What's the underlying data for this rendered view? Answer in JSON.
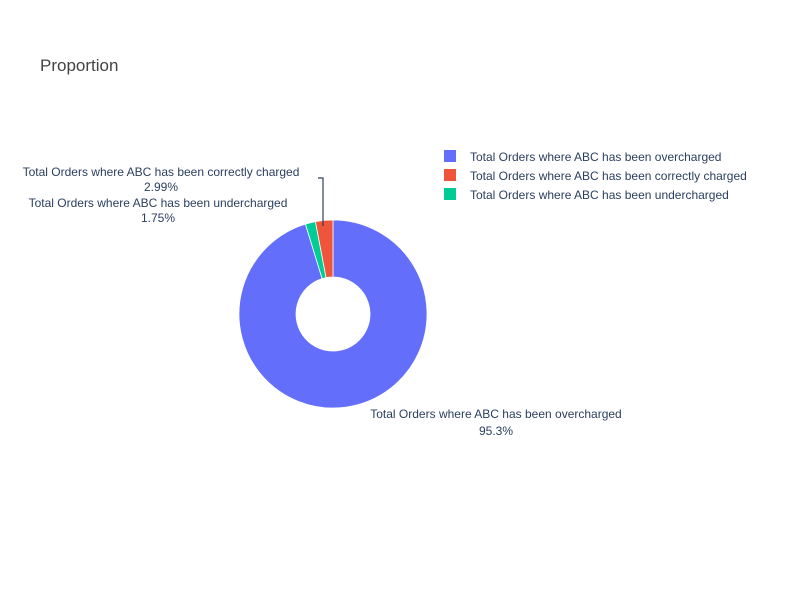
{
  "chart_data": {
    "type": "pie",
    "title": "Proportion",
    "hole": true,
    "legend_position": "top-right",
    "slices": [
      {
        "label": "Total Orders where ABC has been overcharged",
        "percent": "95.3%",
        "value": 95.26,
        "color": "#636efa"
      },
      {
        "label": "Total Orders where ABC has been correctly charged",
        "percent": "2.99%",
        "value": 2.99,
        "color": "#ef553b"
      },
      {
        "label": "Total Orders where ABC has been undercharged",
        "percent": "1.75%",
        "value": 1.75,
        "color": "#00cc96"
      }
    ],
    "legend": [
      {
        "label": "Total Orders where ABC has been overcharged",
        "color": "#636efa"
      },
      {
        "label": "Total Orders where ABC has been correctly charged",
        "color": "#ef553b"
      },
      {
        "label": "Total Orders where ABC has been undercharged",
        "color": "#00cc96"
      }
    ]
  }
}
